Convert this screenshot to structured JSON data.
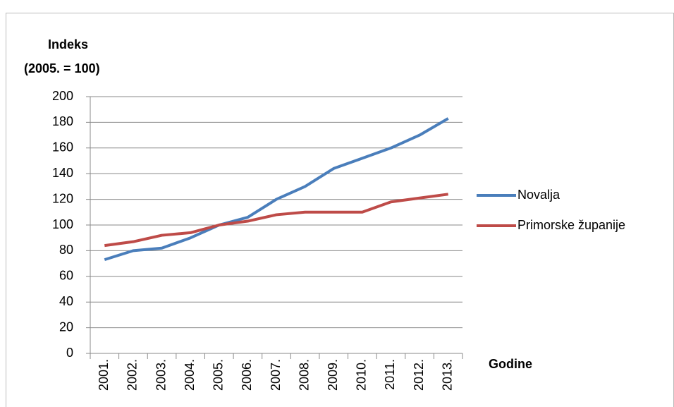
{
  "chart_data": {
    "type": "line",
    "y_label": [
      "Indeks",
      "(2005. = 100)"
    ],
    "x_label": "Godine",
    "categories": [
      "2001.",
      "2002.",
      "2003.",
      "2004.",
      "2005.",
      "2006.",
      "2007.",
      "2008.",
      "2009.",
      "2010.",
      "2011.",
      "2012.",
      "2013."
    ],
    "series": [
      {
        "name": "Novalja",
        "color": "#4a7ebb",
        "values": [
          73,
          80,
          82,
          90,
          100,
          106,
          120,
          130,
          144,
          152,
          160,
          170,
          183
        ]
      },
      {
        "name": "Primorske županije",
        "color": "#be4b48",
        "values": [
          84,
          87,
          92,
          94,
          100,
          103,
          108,
          110,
          110,
          110,
          118,
          121,
          124
        ]
      }
    ],
    "ylim": [
      0,
      200
    ],
    "yticks": [
      0,
      20,
      40,
      60,
      80,
      100,
      120,
      140,
      160,
      180,
      200
    ],
    "grid": true,
    "legend": "right"
  }
}
